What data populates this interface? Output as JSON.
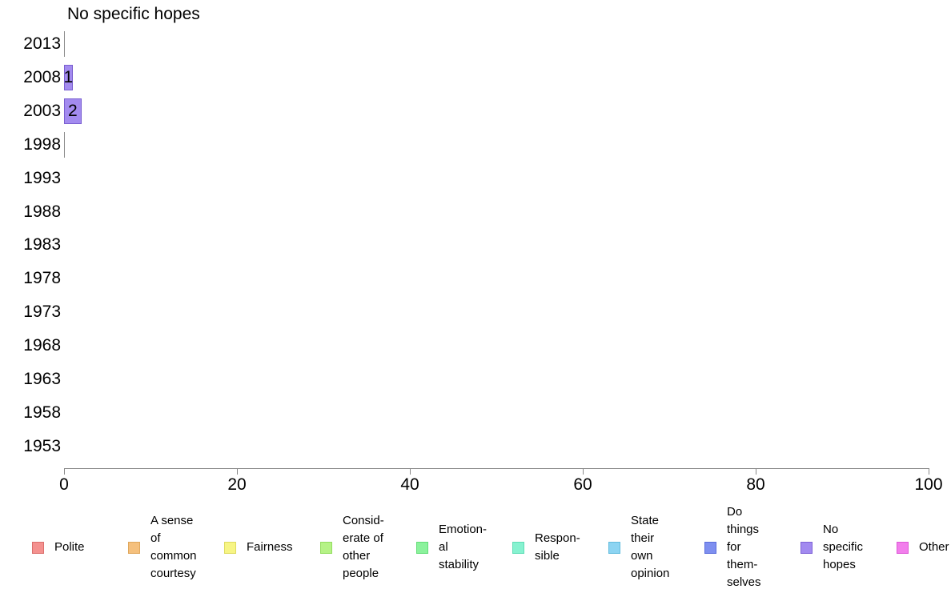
{
  "chart_data": {
    "type": "bar",
    "orientation": "horizontal",
    "title": "No specific hopes",
    "series_name": "No specific hopes",
    "categories": [
      "2013",
      "2008",
      "2003",
      "1998",
      "1993",
      "1988",
      "1983",
      "1978",
      "1973",
      "1968",
      "1963",
      "1958",
      "1953"
    ],
    "values": [
      0,
      1,
      2,
      0,
      null,
      null,
      null,
      null,
      null,
      null,
      null,
      null,
      null
    ],
    "xlabel": "",
    "ylabel": "",
    "xlim": [
      0,
      100
    ],
    "xticks": [
      0,
      20,
      40,
      60,
      80,
      100
    ],
    "grid": false,
    "legend_position": "bottom",
    "colors": {
      "bar_fill": "#a38bef",
      "bar_border": "#7a5fd0",
      "zero_stub": "#8c8c8c",
      "axis": "#8a8a8a",
      "text": "#000000"
    },
    "legend": [
      {
        "label": "Polite",
        "display": "Polite",
        "color": "#f4918f",
        "border": "#db6f6d"
      },
      {
        "label": "A sense of common courtesy",
        "display": "A sense\nof\ncommon\ncourtesy",
        "color": "#f5c07d",
        "border": "#e0a75c"
      },
      {
        "label": "Fairness",
        "display": "Fairness",
        "color": "#f7f584",
        "border": "#dedb5e"
      },
      {
        "label": "Considerate of other people",
        "display": "Consid-\nerate of\nother\npeople",
        "color": "#b5f286",
        "border": "#93dd5f"
      },
      {
        "label": "Emotional stability",
        "display": "Emotion-\nal\nstability",
        "color": "#8bf29c",
        "border": "#63dd78"
      },
      {
        "label": "Responsible",
        "display": "Respon-\nsible",
        "color": "#86f2d0",
        "border": "#5fddb6"
      },
      {
        "label": "State their own opinion",
        "display": "State\ntheir\nown\nopinion",
        "color": "#8cd4f2",
        "border": "#62bcdd"
      },
      {
        "label": "Do things for themselves",
        "display": "Do\nthings\nfor\nthem-\nselves",
        "color": "#7e8ff0",
        "border": "#5a6cdb"
      },
      {
        "label": "No specific hopes",
        "display": "No\nspecific\nhopes",
        "color": "#a28af0",
        "border": "#7e62d6"
      },
      {
        "label": "Other",
        "display": "Other",
        "color": "#f27eec",
        "border": "#dd58d6"
      }
    ]
  }
}
